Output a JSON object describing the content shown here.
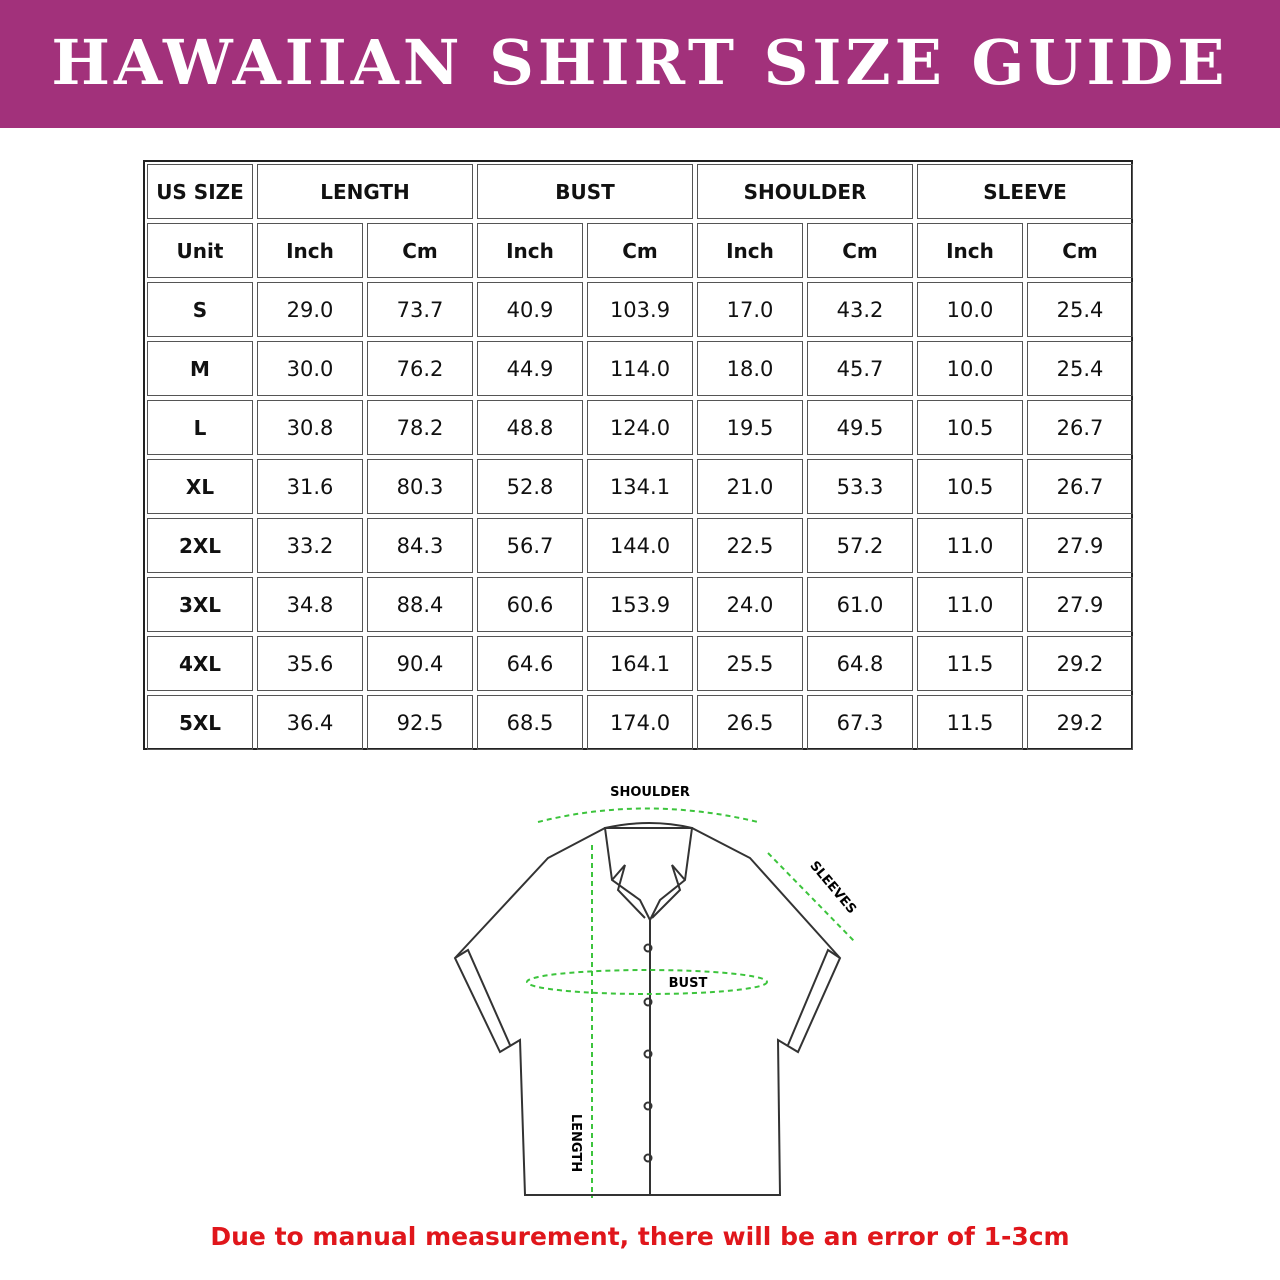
{
  "header": {
    "title": "HAWAIIAN SHIRT SIZE GUIDE"
  },
  "table": {
    "groups": [
      "US SIZE",
      "LENGTH",
      "BUST",
      "SHOULDER",
      "SLEEVE"
    ],
    "units": [
      "Unit",
      "Inch",
      "Cm",
      "Inch",
      "Cm",
      "Inch",
      "Cm",
      "Inch",
      "Cm"
    ],
    "rows": [
      [
        "S",
        "29.0",
        "73.7",
        "40.9",
        "103.9",
        "17.0",
        "43.2",
        "10.0",
        "25.4"
      ],
      [
        "M",
        "30.0",
        "76.2",
        "44.9",
        "114.0",
        "18.0",
        "45.7",
        "10.0",
        "25.4"
      ],
      [
        "L",
        "30.8",
        "78.2",
        "48.8",
        "124.0",
        "19.5",
        "49.5",
        "10.5",
        "26.7"
      ],
      [
        "XL",
        "31.6",
        "80.3",
        "52.8",
        "134.1",
        "21.0",
        "53.3",
        "10.5",
        "26.7"
      ],
      [
        "2XL",
        "33.2",
        "84.3",
        "56.7",
        "144.0",
        "22.5",
        "57.2",
        "11.0",
        "27.9"
      ],
      [
        "3XL",
        "34.8",
        "88.4",
        "60.6",
        "153.9",
        "24.0",
        "61.0",
        "11.0",
        "27.9"
      ],
      [
        "4XL",
        "35.6",
        "90.4",
        "64.6",
        "164.1",
        "25.5",
        "64.8",
        "11.5",
        "29.2"
      ],
      [
        "5XL",
        "36.4",
        "92.5",
        "68.5",
        "174.0",
        "26.5",
        "67.3",
        "11.5",
        "29.2"
      ]
    ]
  },
  "diagram": {
    "shoulder": "SHOULDER",
    "sleeves": "SLEEVES",
    "bust": "BUST",
    "length": "LENGTH"
  },
  "footer": {
    "note": "Due to manual measurement, there will be an error of 1-3cm"
  }
}
